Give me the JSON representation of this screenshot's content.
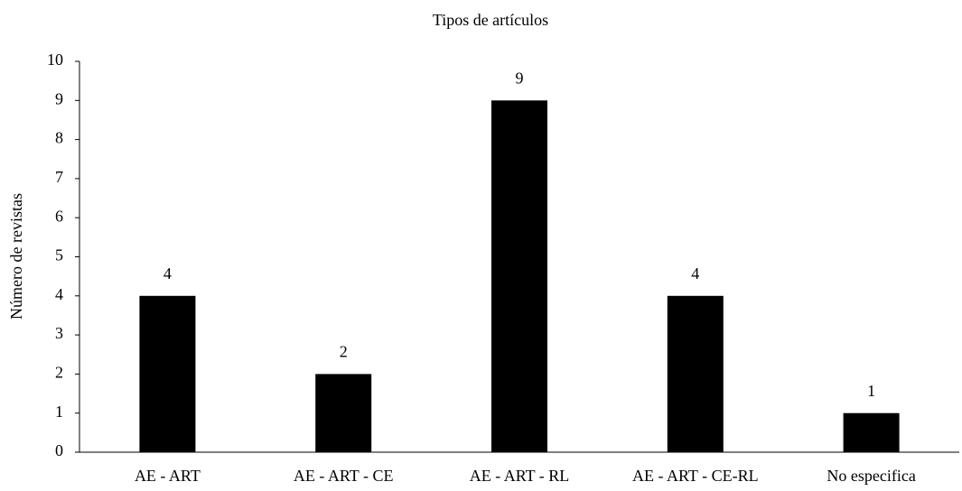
{
  "chart_data": {
    "type": "bar",
    "title": "Tipos de artículos",
    "y_label": "Número de revistas",
    "categories": [
      "AE - ART",
      "AE - ART - CE",
      "AE - ART - RL",
      "AE - ART - CE-RL",
      "No especifica"
    ],
    "values": [
      4,
      2,
      9,
      4,
      1
    ],
    "color": "#000000",
    "ylim": [
      0,
      10
    ],
    "yticks": [
      0,
      1,
      2,
      3,
      4,
      5,
      6,
      7,
      8,
      9,
      10
    ],
    "grid": false,
    "data_labels": true
  }
}
